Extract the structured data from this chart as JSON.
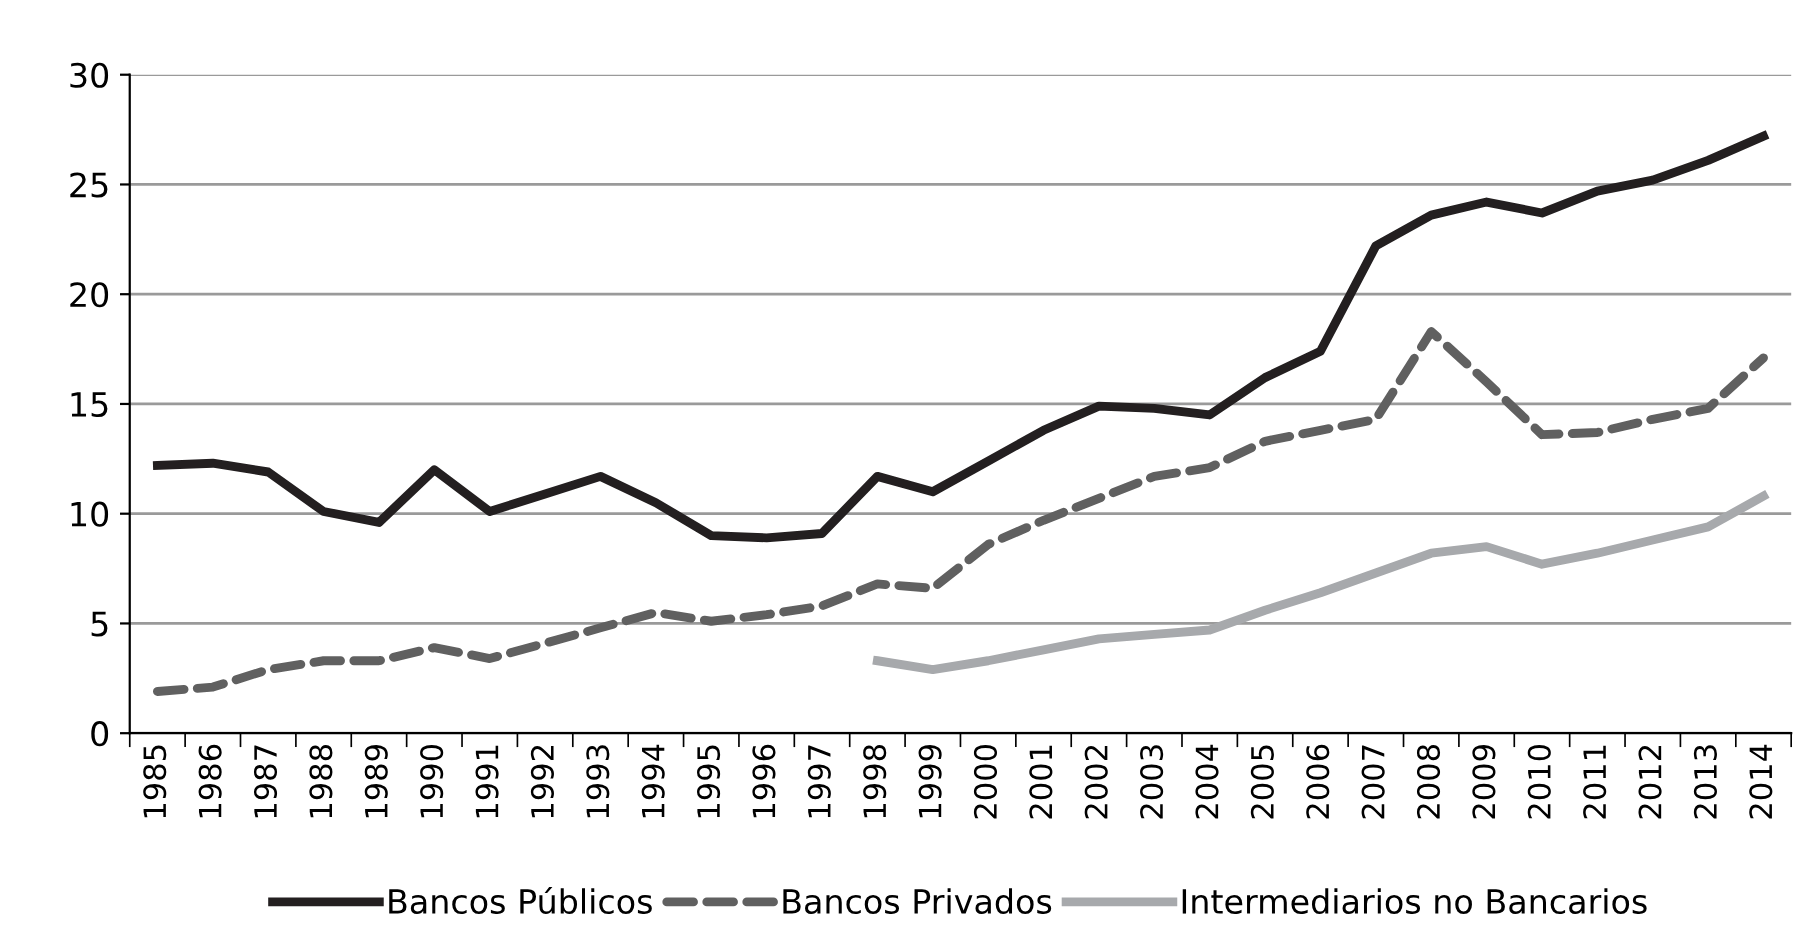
{
  "chart_data": {
    "type": "line",
    "categories": [
      "1985",
      "1986",
      "1987",
      "1988",
      "1989",
      "1990",
      "1991",
      "1992",
      "1993",
      "1994",
      "1995",
      "1996",
      "1997",
      "1998",
      "1999",
      "2000",
      "2001",
      "2002",
      "2003",
      "2004",
      "2005",
      "2006",
      "2007",
      "2008",
      "2009",
      "2010",
      "2011",
      "2012",
      "2013",
      "2014"
    ],
    "series": [
      {
        "name": "Bancos Públicos",
        "color": "#231f20",
        "line_style": "solid",
        "values": [
          12.2,
          12.3,
          11.9,
          10.1,
          9.6,
          12.0,
          10.1,
          10.9,
          11.7,
          10.5,
          9.0,
          8.9,
          9.1,
          11.7,
          11.0,
          12.4,
          13.8,
          14.9,
          14.8,
          14.5,
          16.2,
          17.4,
          22.2,
          23.6,
          24.2,
          23.7,
          24.7,
          25.2,
          26.1,
          27.2
        ]
      },
      {
        "name": "Bancos Privados",
        "color": "#606060",
        "line_style": "dashed",
        "values": [
          1.9,
          2.1,
          2.9,
          3.3,
          3.3,
          3.9,
          3.4,
          4.1,
          4.8,
          5.5,
          5.1,
          5.4,
          5.8,
          6.8,
          6.6,
          8.6,
          9.7,
          10.7,
          11.7,
          12.1,
          13.3,
          13.8,
          14.3,
          18.3,
          16.0,
          13.6,
          13.7,
          14.3,
          14.8,
          17.1
        ]
      },
      {
        "name": "Intermediarios no Bancarios",
        "color": "#a7a9ac",
        "line_style": "solid",
        "values": [
          null,
          null,
          null,
          null,
          null,
          null,
          null,
          null,
          null,
          null,
          null,
          null,
          null,
          3.3,
          2.9,
          3.3,
          3.8,
          4.3,
          4.5,
          4.7,
          5.6,
          6.4,
          7.3,
          8.2,
          8.5,
          7.7,
          8.2,
          8.8,
          9.4,
          10.8
        ]
      }
    ],
    "ylim": [
      0,
      30
    ],
    "yticks": [
      0,
      5,
      10,
      15,
      20,
      25,
      30
    ],
    "grid": "y",
    "legend": "bottom",
    "marker": "none"
  }
}
